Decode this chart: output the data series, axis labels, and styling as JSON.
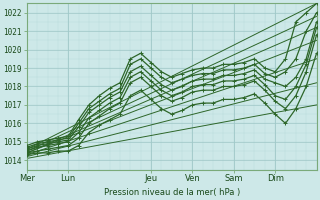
{
  "background_color": "#cde8e8",
  "plot_bg_color": "#cde8e8",
  "grid_major_color": "#a0c8c8",
  "grid_minor_color": "#b8dada",
  "line_color": "#2d6629",
  "ylim": [
    1013.5,
    1022.5
  ],
  "xlim": [
    0,
    168
  ],
  "yticks": [
    1014,
    1015,
    1016,
    1017,
    1018,
    1019,
    1020,
    1021,
    1022
  ],
  "xtick_positions": [
    0,
    24,
    72,
    96,
    120,
    144
  ],
  "xtick_labels": [
    "Mer",
    "Lun",
    "Jeu",
    "Ven",
    "Sam",
    "Dim"
  ],
  "xlabel": "Pression niveau de la mer( hPa )",
  "straight_lines": [
    {
      "x0": 0,
      "y0": 1014.6,
      "x1": 168,
      "y1": 1022.5
    },
    {
      "x0": 0,
      "y0": 1014.5,
      "x1": 168,
      "y1": 1021.8
    },
    {
      "x0": 0,
      "y0": 1014.4,
      "x1": 168,
      "y1": 1021.2
    },
    {
      "x0": 0,
      "y0": 1014.4,
      "x1": 168,
      "y1": 1020.5
    },
    {
      "x0": 0,
      "y0": 1014.3,
      "x1": 168,
      "y1": 1019.5
    },
    {
      "x0": 0,
      "y0": 1014.2,
      "x1": 168,
      "y1": 1018.2
    },
    {
      "x0": 0,
      "y0": 1014.1,
      "x1": 168,
      "y1": 1017.0
    }
  ],
  "wavy_lines": [
    {
      "pts": [
        [
          0,
          1014.8
        ],
        [
          6,
          1015.0
        ],
        [
          12,
          1015.1
        ],
        [
          18,
          1015.2
        ],
        [
          24,
          1015.3
        ],
        [
          30,
          1016.2
        ],
        [
          36,
          1017.0
        ],
        [
          42,
          1017.5
        ],
        [
          48,
          1017.9
        ],
        [
          54,
          1018.2
        ],
        [
          60,
          1019.5
        ],
        [
          66,
          1019.8
        ],
        [
          72,
          1019.3
        ],
        [
          78,
          1018.8
        ],
        [
          84,
          1018.5
        ],
        [
          90,
          1018.7
        ],
        [
          96,
          1018.9
        ],
        [
          102,
          1019.0
        ],
        [
          108,
          1019.0
        ],
        [
          114,
          1019.2
        ],
        [
          120,
          1019.2
        ],
        [
          126,
          1019.3
        ],
        [
          132,
          1019.5
        ],
        [
          138,
          1019.0
        ],
        [
          144,
          1018.8
        ],
        [
          150,
          1019.5
        ],
        [
          156,
          1021.5
        ],
        [
          162,
          1022.0
        ],
        [
          168,
          1022.5
        ]
      ]
    },
    {
      "pts": [
        [
          0,
          1014.7
        ],
        [
          6,
          1014.9
        ],
        [
          12,
          1015.0
        ],
        [
          18,
          1015.1
        ],
        [
          24,
          1015.2
        ],
        [
          30,
          1016.0
        ],
        [
          36,
          1016.8
        ],
        [
          42,
          1017.2
        ],
        [
          48,
          1017.6
        ],
        [
          54,
          1017.9
        ],
        [
          60,
          1019.2
        ],
        [
          66,
          1019.5
        ],
        [
          72,
          1019.0
        ],
        [
          78,
          1018.5
        ],
        [
          84,
          1018.2
        ],
        [
          90,
          1018.4
        ],
        [
          96,
          1018.6
        ],
        [
          102,
          1018.7
        ],
        [
          108,
          1018.7
        ],
        [
          114,
          1018.9
        ],
        [
          120,
          1018.9
        ],
        [
          126,
          1019.0
        ],
        [
          132,
          1019.2
        ],
        [
          138,
          1018.7
        ],
        [
          144,
          1018.5
        ],
        [
          150,
          1018.8
        ],
        [
          156,
          1019.5
        ],
        [
          162,
          1021.0
        ],
        [
          168,
          1022.0
        ]
      ]
    },
    {
      "pts": [
        [
          0,
          1014.6
        ],
        [
          6,
          1014.8
        ],
        [
          12,
          1014.9
        ],
        [
          18,
          1015.0
        ],
        [
          24,
          1015.1
        ],
        [
          30,
          1015.8
        ],
        [
          36,
          1016.6
        ],
        [
          42,
          1017.0
        ],
        [
          48,
          1017.4
        ],
        [
          54,
          1017.7
        ],
        [
          60,
          1018.8
        ],
        [
          66,
          1019.1
        ],
        [
          72,
          1018.6
        ],
        [
          78,
          1018.1
        ],
        [
          84,
          1017.8
        ],
        [
          90,
          1018.0
        ],
        [
          96,
          1018.3
        ],
        [
          102,
          1018.4
        ],
        [
          108,
          1018.4
        ],
        [
          114,
          1018.6
        ],
        [
          120,
          1018.6
        ],
        [
          126,
          1018.7
        ],
        [
          132,
          1018.9
        ],
        [
          138,
          1018.4
        ],
        [
          144,
          1018.2
        ],
        [
          150,
          1018.0
        ],
        [
          156,
          1018.5
        ],
        [
          162,
          1019.5
        ],
        [
          168,
          1021.5
        ]
      ]
    },
    {
      "pts": [
        [
          0,
          1014.5
        ],
        [
          6,
          1014.7
        ],
        [
          12,
          1014.8
        ],
        [
          18,
          1014.9
        ],
        [
          24,
          1015.0
        ],
        [
          30,
          1015.5
        ],
        [
          36,
          1016.3
        ],
        [
          42,
          1016.7
        ],
        [
          48,
          1017.1
        ],
        [
          54,
          1017.4
        ],
        [
          60,
          1018.5
        ],
        [
          66,
          1018.8
        ],
        [
          72,
          1018.3
        ],
        [
          78,
          1017.8
        ],
        [
          84,
          1017.5
        ],
        [
          90,
          1017.7
        ],
        [
          96,
          1018.0
        ],
        [
          102,
          1018.1
        ],
        [
          108,
          1018.1
        ],
        [
          114,
          1018.3
        ],
        [
          120,
          1018.3
        ],
        [
          126,
          1018.4
        ],
        [
          132,
          1018.6
        ],
        [
          138,
          1018.1
        ],
        [
          144,
          1017.5
        ],
        [
          150,
          1017.3
        ],
        [
          156,
          1018.0
        ],
        [
          162,
          1019.2
        ],
        [
          168,
          1021.2
        ]
      ]
    },
    {
      "pts": [
        [
          0,
          1014.4
        ],
        [
          6,
          1014.5
        ],
        [
          12,
          1014.6
        ],
        [
          18,
          1014.7
        ],
        [
          24,
          1014.8
        ],
        [
          30,
          1015.2
        ],
        [
          36,
          1016.0
        ],
        [
          42,
          1016.4
        ],
        [
          48,
          1016.8
        ],
        [
          54,
          1017.1
        ],
        [
          60,
          1018.2
        ],
        [
          66,
          1018.5
        ],
        [
          72,
          1018.0
        ],
        [
          78,
          1017.5
        ],
        [
          84,
          1017.2
        ],
        [
          90,
          1017.4
        ],
        [
          96,
          1017.7
        ],
        [
          102,
          1017.8
        ],
        [
          108,
          1017.8
        ],
        [
          114,
          1018.0
        ],
        [
          120,
          1018.0
        ],
        [
          126,
          1018.1
        ],
        [
          132,
          1018.3
        ],
        [
          138,
          1017.8
        ],
        [
          144,
          1017.2
        ],
        [
          150,
          1016.8
        ],
        [
          156,
          1017.5
        ],
        [
          162,
          1018.8
        ],
        [
          168,
          1020.8
        ]
      ]
    },
    {
      "pts": [
        [
          0,
          1014.3
        ],
        [
          6,
          1014.4
        ],
        [
          12,
          1014.4
        ],
        [
          18,
          1014.5
        ],
        [
          24,
          1014.5
        ],
        [
          30,
          1014.8
        ],
        [
          36,
          1015.5
        ],
        [
          42,
          1015.9
        ],
        [
          48,
          1016.2
        ],
        [
          54,
          1016.5
        ],
        [
          60,
          1017.5
        ],
        [
          66,
          1017.8
        ],
        [
          72,
          1017.3
        ],
        [
          78,
          1016.8
        ],
        [
          84,
          1016.5
        ],
        [
          90,
          1016.7
        ],
        [
          96,
          1017.0
        ],
        [
          102,
          1017.1
        ],
        [
          108,
          1017.1
        ],
        [
          114,
          1017.3
        ],
        [
          120,
          1017.3
        ],
        [
          126,
          1017.4
        ],
        [
          132,
          1017.6
        ],
        [
          138,
          1017.1
        ],
        [
          144,
          1016.5
        ],
        [
          150,
          1016.0
        ],
        [
          156,
          1016.8
        ],
        [
          162,
          1018.0
        ],
        [
          168,
          1019.8
        ]
      ]
    }
  ]
}
